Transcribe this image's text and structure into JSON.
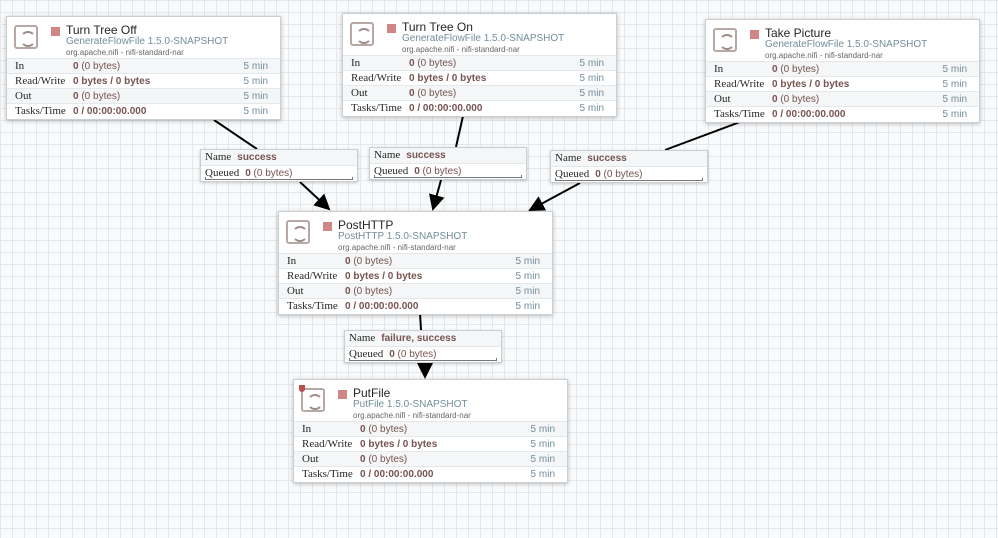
{
  "processors": [
    {
      "id": "turn-tree-off",
      "name": "Turn Tree Off",
      "type": "GenerateFlowFile 1.5.0-SNAPSHOT",
      "bundle": "org.apache.nifi - nifi-standard-nar",
      "state": "stopped",
      "invalid": false,
      "stats": [
        {
          "label": "In",
          "value": "0",
          "extra": " (0 bytes)",
          "time": "5 min"
        },
        {
          "label": "Read/Write",
          "value": "0 bytes / 0 bytes",
          "extra": "",
          "time": "5 min"
        },
        {
          "label": "Out",
          "value": "0",
          "extra": " (0 bytes)",
          "time": "5 min"
        },
        {
          "label": "Tasks/Time",
          "value": "0 / 00:00:00.000",
          "extra": "",
          "time": "5 min"
        }
      ]
    },
    {
      "id": "turn-tree-on",
      "name": "Turn Tree On",
      "type": "GenerateFlowFile 1.5.0-SNAPSHOT",
      "bundle": "org.apache.nifi - nifi-standard-nar",
      "state": "stopped",
      "invalid": false,
      "stats": [
        {
          "label": "In",
          "value": "0",
          "extra": " (0 bytes)",
          "time": "5 min"
        },
        {
          "label": "Read/Write",
          "value": "0 bytes / 0 bytes",
          "extra": "",
          "time": "5 min"
        },
        {
          "label": "Out",
          "value": "0",
          "extra": " (0 bytes)",
          "time": "5 min"
        },
        {
          "label": "Tasks/Time",
          "value": "0 / 00:00:00.000",
          "extra": "",
          "time": "5 min"
        }
      ]
    },
    {
      "id": "take-picture",
      "name": "Take Picture",
      "type": "GenerateFlowFile 1.5.0-SNAPSHOT",
      "bundle": "org.apache.nifi - nifi-standard-nar",
      "state": "stopped",
      "invalid": false,
      "stats": [
        {
          "label": "In",
          "value": "0",
          "extra": " (0 bytes)",
          "time": "5 min"
        },
        {
          "label": "Read/Write",
          "value": "0 bytes / 0 bytes",
          "extra": "",
          "time": "5 min"
        },
        {
          "label": "Out",
          "value": "0",
          "extra": " (0 bytes)",
          "time": "5 min"
        },
        {
          "label": "Tasks/Time",
          "value": "0 / 00:00:00.000",
          "extra": "",
          "time": "5 min"
        }
      ]
    },
    {
      "id": "posthttp",
      "name": "PostHTTP",
      "type": "PostHTTP 1.5.0-SNAPSHOT",
      "bundle": "org.apache.nifi - nifi-standard-nar",
      "state": "stopped",
      "invalid": false,
      "stats": [
        {
          "label": "In",
          "value": "0",
          "extra": " (0 bytes)",
          "time": "5 min"
        },
        {
          "label": "Read/Write",
          "value": "0 bytes / 0 bytes",
          "extra": "",
          "time": "5 min"
        },
        {
          "label": "Out",
          "value": "0",
          "extra": " (0 bytes)",
          "time": "5 min"
        },
        {
          "label": "Tasks/Time",
          "value": "0 / 00:00:00.000",
          "extra": "",
          "time": "5 min"
        }
      ]
    },
    {
      "id": "putfile",
      "name": "PutFile",
      "type": "PutFile 1.5.0-SNAPSHOT",
      "bundle": "org.apache.nifi - nifi-standard-nar",
      "state": "stopped",
      "invalid": true,
      "stats": [
        {
          "label": "In",
          "value": "0",
          "extra": " (0 bytes)",
          "time": "5 min"
        },
        {
          "label": "Read/Write",
          "value": "0 bytes / 0 bytes",
          "extra": "",
          "time": "5 min"
        },
        {
          "label": "Out",
          "value": "0",
          "extra": " (0 bytes)",
          "time": "5 min"
        },
        {
          "label": "Tasks/Time",
          "value": "0 / 00:00:00.000",
          "extra": "",
          "time": "5 min"
        }
      ]
    }
  ],
  "connections": [
    {
      "name_label": "Name",
      "name": "success",
      "queued_label": "Queued",
      "queued": "0",
      "queued_extra": " (0 bytes)"
    },
    {
      "name_label": "Name",
      "name": "success",
      "queued_label": "Queued",
      "queued": "0",
      "queued_extra": " (0 bytes)"
    },
    {
      "name_label": "Name",
      "name": "success",
      "queued_label": "Queued",
      "queued": "0",
      "queued_extra": " (0 bytes)"
    },
    {
      "name_label": "Name",
      "name": "failure, success",
      "queued_label": "Queued",
      "queued": "0",
      "queued_extra": " (0 bytes)"
    }
  ],
  "colors": {
    "stopped": "#d18686",
    "type": "#728e9b",
    "value": "#775351"
  }
}
